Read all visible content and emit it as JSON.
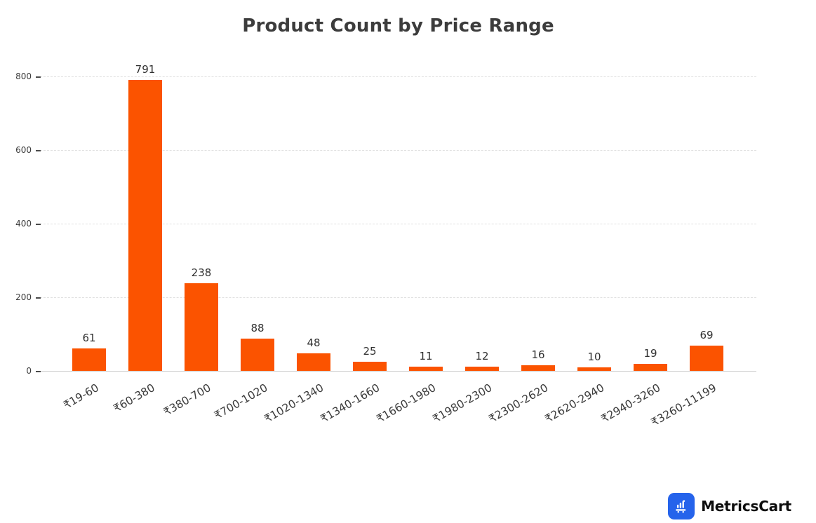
{
  "page": {
    "background": "#ffffff"
  },
  "chart_data": {
    "type": "bar",
    "title": "Product Count by Price Range",
    "categories": [
      "₹19-60",
      "₹60-380",
      "₹380-700",
      "₹700-1020",
      "₹1020-1340",
      "₹1340-1660",
      "₹1660-1980",
      "₹1980-2300",
      "₹2300-2620",
      "₹2620-2940",
      "₹2940-3260",
      "₹3260-11199"
    ],
    "values": [
      61,
      791,
      238,
      88,
      48,
      25,
      11,
      12,
      16,
      10,
      19,
      69
    ],
    "xlabel": "",
    "ylabel": "",
    "ylim": [
      0,
      800
    ],
    "yticks": [
      0,
      200,
      400,
      600,
      800
    ],
    "bar_color": "#fb5300",
    "value_labels_shown": true,
    "grid": "horizontal-dashed",
    "legend": "none",
    "x_tick_rotation_deg": -30
  },
  "branding": {
    "logo_text": "MetricsCart",
    "logo_icon": "bar-chart-cart-icon",
    "logo_icon_bg": "#2563eb"
  },
  "colors": {
    "title_text": "#3c3c3c",
    "axis_text": "#3d3d3d",
    "value_label_text": "#303030",
    "gridline": "#e0e0e0",
    "axis_line": "#cccccc"
  }
}
